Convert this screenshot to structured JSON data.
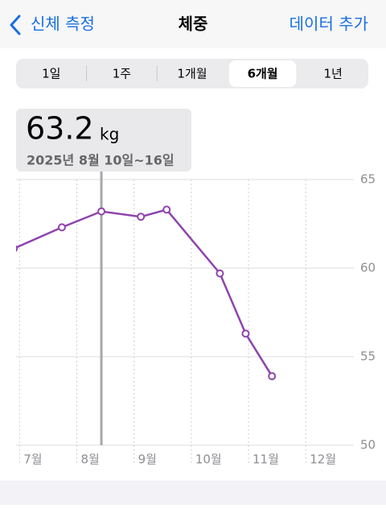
{
  "nav": {
    "back": "신체 측정",
    "title": "체중",
    "action": "데이터 추가"
  },
  "segments": [
    "1일",
    "1주",
    "1개월",
    "6개월",
    "1년"
  ],
  "selected_segment": "6개월",
  "chart_data": {
    "type": "line",
    "highlight": {
      "value": 63.2,
      "unit": "kg",
      "period": "2025년 8월 10일~16일"
    },
    "x": [
      6.9,
      7.74,
      8.43,
      9.12,
      9.57,
      10.5,
      10.95,
      11.41
    ],
    "values": [
      61.1,
      62.3,
      63.2,
      62.9,
      63.3,
      59.7,
      56.3,
      53.9
    ],
    "color": "#8e44ad",
    "xlim": [
      6.94,
      12.84
    ],
    "xticks": [
      {
        "value": 7,
        "label": "7월"
      },
      {
        "value": 8,
        "label": "8월"
      },
      {
        "value": 9,
        "label": "9월"
      },
      {
        "value": 10,
        "label": "10월"
      },
      {
        "value": 11,
        "label": "11월"
      },
      {
        "value": 12,
        "label": "12월"
      }
    ],
    "ylim": [
      50,
      65
    ],
    "yticks": [
      50,
      55,
      60,
      65
    ],
    "grid": true
  }
}
